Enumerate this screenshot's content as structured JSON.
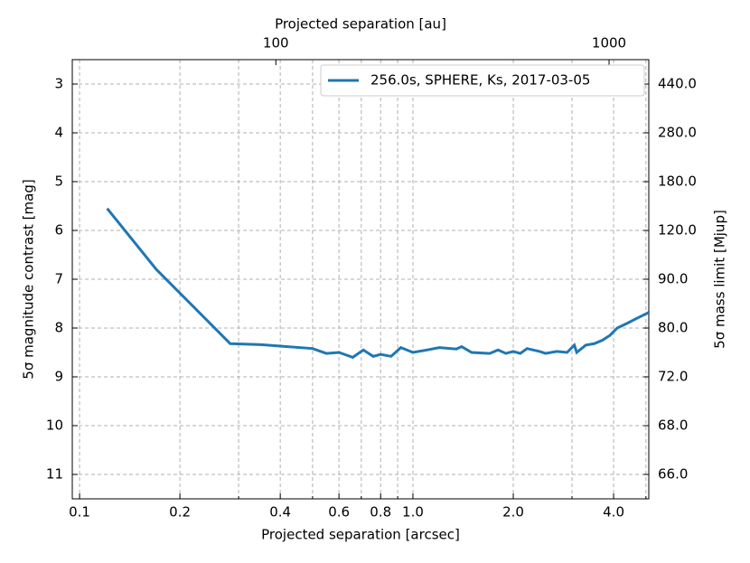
{
  "chart_data": {
    "type": "line",
    "xlabel": "Projected separation [arcsec]",
    "x2label": "Projected separation [au]",
    "ylabel": "5σ magnitude contrast [mag]",
    "y2label": "5σ mass limit [Mjup]",
    "xscale": "log",
    "xlim": [
      0.0951,
      5.1
    ],
    "xticks": [
      0.1,
      0.2,
      0.4,
      0.6,
      0.8,
      {
        "value": 1,
        "label": "1.0"
      },
      {
        "value": 2,
        "label": "2.0"
      },
      {
        "value": 4,
        "label": "4.0"
      }
    ],
    "xminor_ticks": [
      0.3,
      0.5,
      0.7,
      0.9,
      3,
      5
    ],
    "x2lim": [
      24.5,
      1316
    ],
    "x2ticks": [
      100,
      1000
    ],
    "ylim": [
      11.5,
      2.5
    ],
    "yticks": [
      3,
      4,
      5,
      6,
      7,
      8,
      9,
      10,
      11
    ],
    "y2ticks": [
      {
        "value": 440,
        "label": "440.0"
      },
      {
        "value": 280,
        "label": "280.0"
      },
      {
        "value": 180,
        "label": "180.0"
      },
      {
        "value": 120,
        "label": "120.0"
      },
      {
        "value": 90,
        "label": "90.0"
      },
      {
        "value": 80,
        "label": "80.0"
      },
      {
        "value": 72,
        "label": "72.0"
      },
      {
        "value": 68,
        "label": "68.0"
      },
      {
        "value": 66,
        "label": "66.0"
      }
    ],
    "y2tick_positions": [
      3,
      4,
      5,
      6,
      7,
      8,
      9,
      10,
      11
    ],
    "grid": true,
    "legend": "upper right",
    "x": [
      0.121,
      0.17,
      0.23,
      0.283,
      0.35,
      0.5,
      0.55,
      0.6,
      0.66,
      0.71,
      0.76,
      0.8,
      0.86,
      0.92,
      1.0,
      1.1,
      1.2,
      1.35,
      1.4,
      1.5,
      1.7,
      1.8,
      1.9,
      2.0,
      2.1,
      2.2,
      2.4,
      2.5,
      2.7,
      2.9,
      3.05,
      3.1,
      3.3,
      3.5,
      3.7,
      3.9,
      4.1,
      4.4,
      4.7,
      5.1
    ],
    "series": [
      {
        "name": "256.0s, SPHERE, Ks, 2017-03-05",
        "color": "#1f77b4",
        "values": [
          5.55,
          6.8,
          7.7,
          8.32,
          8.34,
          8.42,
          8.52,
          8.5,
          8.6,
          8.45,
          8.58,
          8.54,
          8.58,
          8.4,
          8.5,
          8.45,
          8.4,
          8.43,
          8.38,
          8.5,
          8.52,
          8.45,
          8.52,
          8.48,
          8.52,
          8.42,
          8.48,
          8.52,
          8.48,
          8.5,
          8.35,
          8.5,
          8.35,
          8.32,
          8.25,
          8.15,
          8.0,
          7.9,
          7.8,
          7.68
        ]
      }
    ]
  }
}
